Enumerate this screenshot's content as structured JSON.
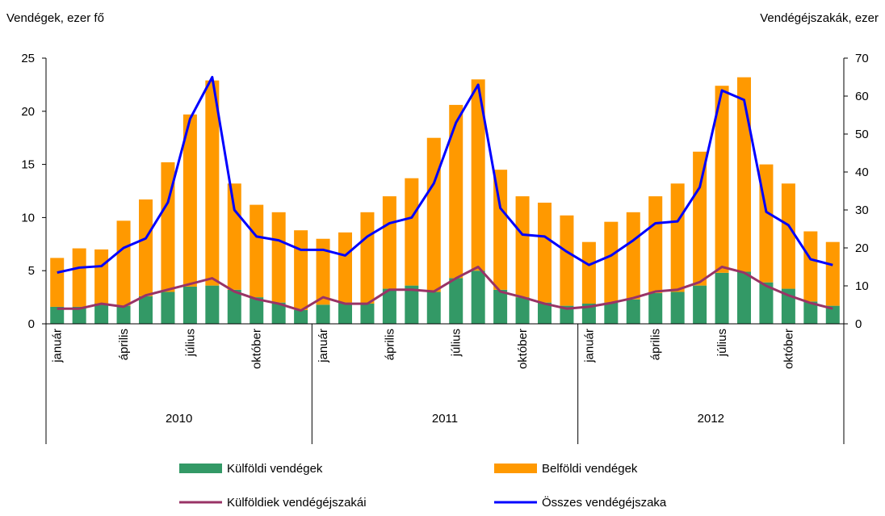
{
  "chart_data": {
    "type": "bar",
    "y_label": "Vendégek, ezer fő",
    "y2_label": "Vendégéjszakák, ezer",
    "categories": [
      "január",
      null,
      null,
      "április",
      null,
      null,
      "július",
      null,
      null,
      "október",
      null,
      null,
      "január",
      null,
      null,
      "április",
      null,
      null,
      "július",
      null,
      null,
      "október",
      null,
      null,
      "január",
      null,
      null,
      "április",
      null,
      null,
      "július",
      null,
      null,
      "október",
      null,
      null
    ],
    "groups": [
      "2010",
      "2011",
      "2012"
    ],
    "stacked": true,
    "series": [
      {
        "name": "Külföldi vendégek",
        "type": "bar",
        "color": "#339966",
        "values": [
          1.6,
          1.6,
          1.9,
          1.7,
          2.6,
          3.0,
          3.5,
          3.6,
          3.2,
          2.5,
          2.0,
          1.3,
          1.8,
          2.0,
          1.9,
          3.3,
          3.6,
          3.0,
          4.3,
          5.0,
          3.2,
          2.5,
          2.0,
          1.7,
          1.9,
          2.0,
          2.3,
          2.9,
          3.0,
          3.6,
          4.8,
          4.9,
          3.9,
          3.3,
          2.1,
          1.7
        ]
      },
      {
        "name": "Belföldi vendégek",
        "type": "bar",
        "color": "#ff9900",
        "values": [
          4.6,
          5.5,
          5.1,
          8.0,
          9.1,
          12.2,
          16.2,
          19.3,
          10.0,
          8.7,
          8.5,
          7.5,
          6.2,
          6.6,
          8.6,
          8.7,
          10.1,
          14.5,
          16.3,
          18.0,
          11.3,
          9.5,
          9.4,
          8.5,
          5.8,
          7.6,
          8.2,
          9.1,
          10.2,
          12.6,
          17.6,
          18.3,
          11.1,
          9.9,
          6.6,
          6.0
        ]
      },
      {
        "name": "Külföldiek vendégéjszakái",
        "type": "line",
        "axis": "y2",
        "color": "#993366",
        "values": [
          4,
          4,
          5.3,
          4.5,
          7.5,
          9,
          10.5,
          12,
          8.5,
          6.5,
          5.3,
          3.5,
          7,
          5.3,
          5.3,
          9,
          9,
          8.5,
          12,
          15,
          8.5,
          7,
          5.3,
          4,
          4.5,
          5.5,
          6.8,
          8.5,
          9,
          11,
          15,
          13.5,
          10,
          7.5,
          5.5,
          4
        ]
      },
      {
        "name": "Összes vendégéjszaka",
        "type": "line",
        "axis": "y2",
        "color": "#0000ff",
        "values": [
          13.5,
          14.8,
          15.2,
          20,
          22.5,
          32,
          54,
          65,
          30,
          23,
          22,
          19.5,
          19.5,
          18,
          23,
          26.5,
          28,
          37,
          53,
          63,
          30.5,
          23.5,
          23,
          19,
          15.5,
          18,
          22,
          26.5,
          27,
          36,
          61.5,
          59,
          29.5,
          26,
          17,
          15.5
        ]
      }
    ],
    "ylim": [
      0,
      25
    ],
    "yticks": [
      0,
      5,
      10,
      15,
      20,
      25
    ],
    "y2lim": [
      0,
      70
    ],
    "y2ticks": [
      0,
      10,
      20,
      30,
      40,
      50,
      60,
      70
    ],
    "grid": false
  }
}
